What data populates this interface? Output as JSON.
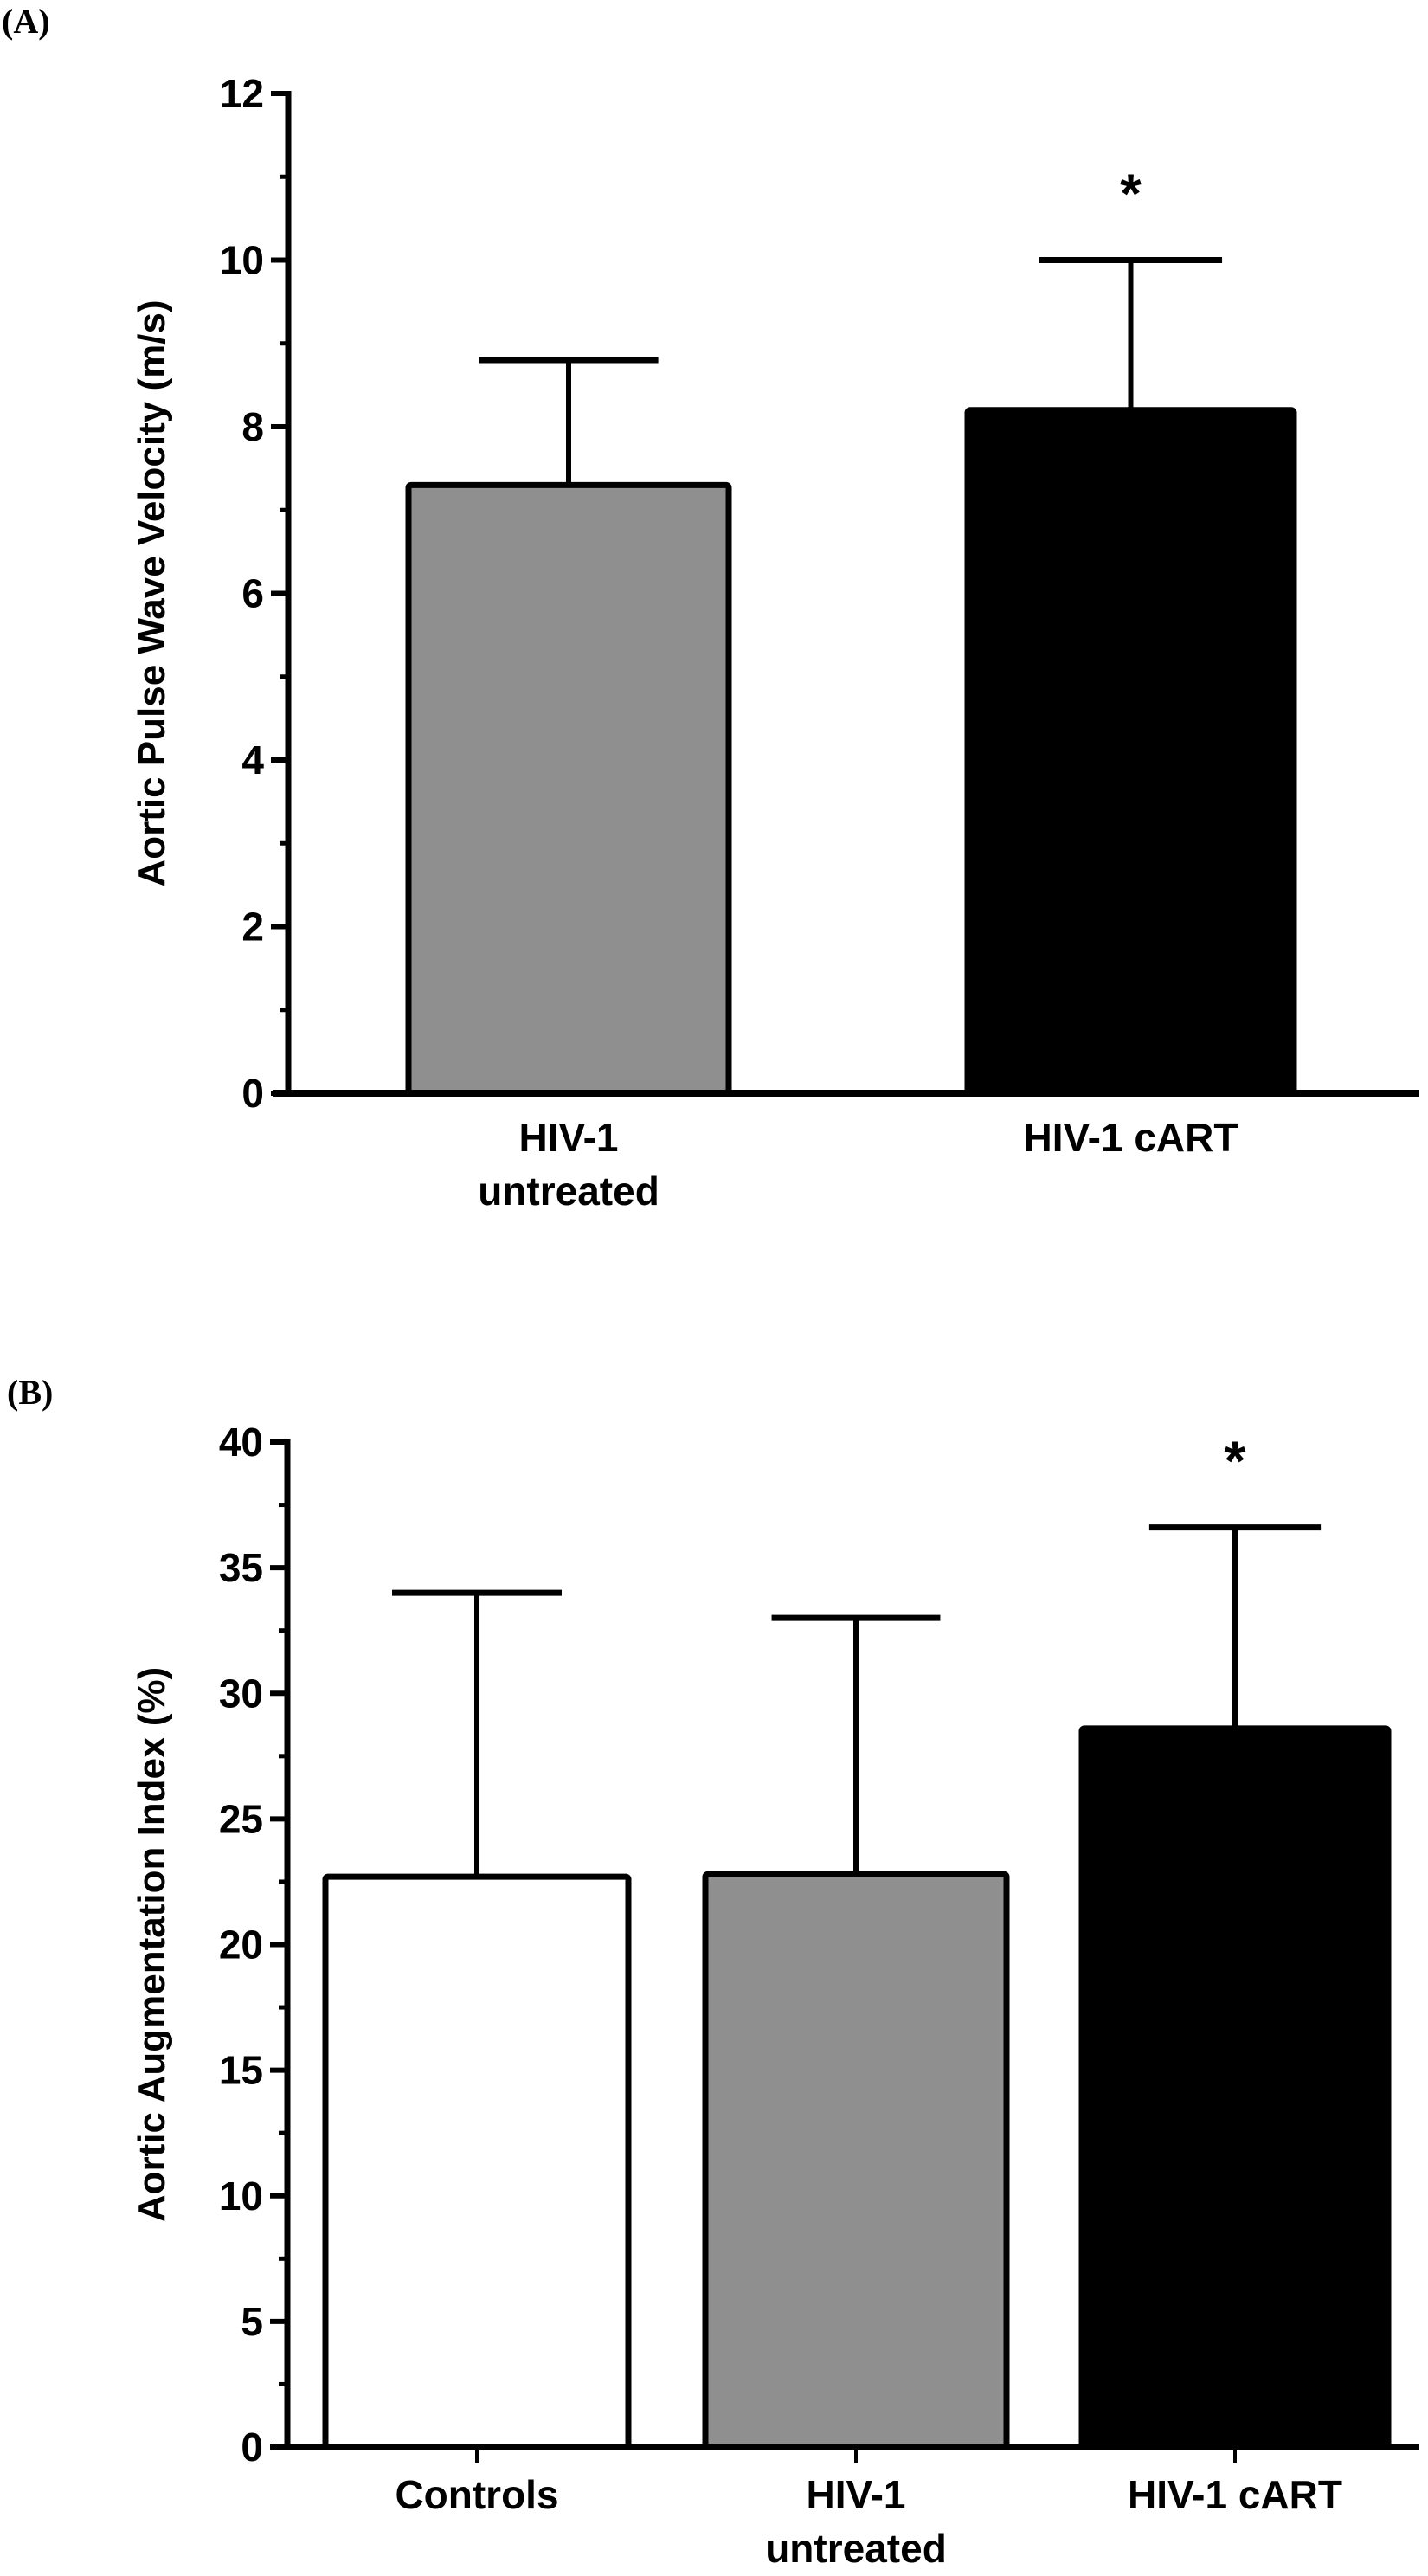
{
  "chart_data": [
    {
      "type": "bar",
      "panel_label": "(A)",
      "title": "",
      "xlabel": "",
      "ylabel": "Aortic Pulse Wave Velocity (m/s)",
      "ylim": [
        0,
        12
      ],
      "yticks": [
        0,
        2,
        4,
        6,
        8,
        10,
        12
      ],
      "ytick_labels": [
        "0",
        "2",
        "4",
        "6",
        "8",
        "10",
        "12"
      ],
      "minor_yticks": [
        1,
        3,
        5,
        7,
        9,
        11
      ],
      "grid": false,
      "x_ticks_shown": false,
      "categories": [
        {
          "lines": [
            "HIV-1",
            "untreated"
          ]
        },
        {
          "lines": [
            "HIV-1 cART"
          ]
        }
      ],
      "values": [
        7.3,
        8.2
      ],
      "error_upper": [
        8.8,
        10.0
      ],
      "significance": [
        "",
        "*"
      ],
      "bar_colors": [
        "#8f8f8f",
        "#000000"
      ]
    },
    {
      "type": "bar",
      "panel_label": "(B)",
      "title": "",
      "xlabel": "",
      "ylabel": "Aortic Augmentation Index (%)",
      "ylim": [
        0,
        40
      ],
      "yticks": [
        0,
        5,
        10,
        15,
        20,
        25,
        30,
        35,
        40
      ],
      "ytick_labels": [
        "0",
        "5",
        "10",
        "15",
        "20",
        "25",
        "30",
        "35",
        "40"
      ],
      "minor_yticks": [
        2.5,
        7.5,
        12.5,
        17.5,
        22.5,
        27.5,
        32.5,
        37.5
      ],
      "grid": false,
      "x_ticks_shown": true,
      "categories": [
        {
          "lines": [
            "Controls"
          ]
        },
        {
          "lines": [
            "HIV-1",
            "untreated"
          ]
        },
        {
          "lines": [
            "HIV-1 cART"
          ]
        }
      ],
      "values": [
        22.7,
        22.8,
        28.6
      ],
      "error_upper": [
        34.0,
        33.0,
        36.6
      ],
      "significance": [
        "",
        "",
        "*"
      ],
      "bar_colors": [
        "#ffffff",
        "#8f8f8f",
        "#000000"
      ]
    }
  ]
}
